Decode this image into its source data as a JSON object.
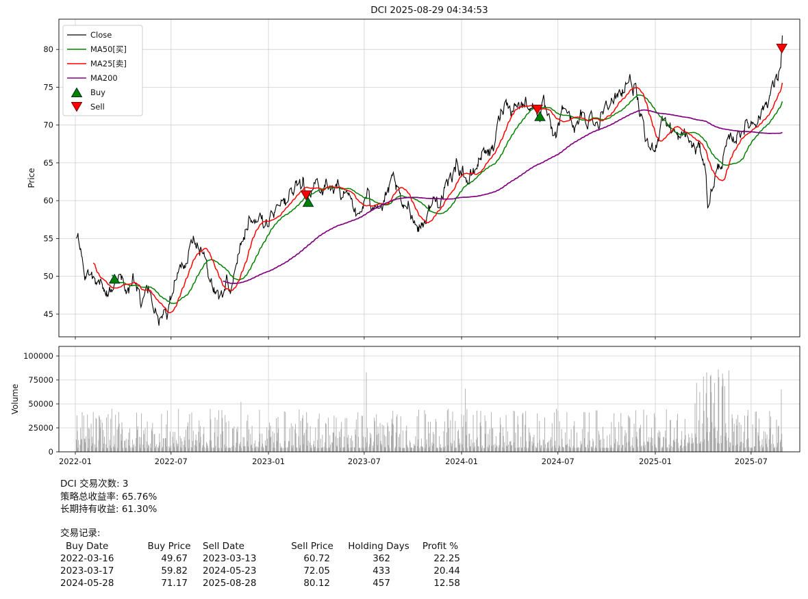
{
  "title": "DCI 2025-08-29 04:34:53",
  "summary": {
    "trade_count_line": "DCI 交易次数: 3",
    "strategy_return_line": "策略总收益率: 65.76%",
    "hold_return_line": "长期持有收益: 61.30%",
    "records_label": "交易记录:"
  },
  "trade_table": {
    "headers": [
      "Buy Date",
      "Buy Price",
      "Sell Date",
      "Sell Price",
      "Holding Days",
      "Profit %"
    ],
    "rows": [
      [
        "2022-03-16",
        "49.67",
        "2023-03-13",
        "60.72",
        "362",
        "22.25"
      ],
      [
        "2023-03-17",
        "59.82",
        "2024-05-23",
        "72.05",
        "433",
        "20.44"
      ],
      [
        "2024-05-28",
        "71.17",
        "2025-08-28",
        "80.12",
        "457",
        "12.58"
      ]
    ]
  },
  "chart_data": [
    {
      "type": "line",
      "title": "DCI 2025-08-29 04:34:53",
      "ylabel": "Price",
      "ylim": [
        42,
        84
      ],
      "yticks": [
        45,
        50,
        55,
        60,
        65,
        70,
        75,
        80
      ],
      "xlim": [
        "2021-12-01",
        "2025-10-01"
      ],
      "xticks": [
        "2022-01",
        "2022-07",
        "2023-01",
        "2023-07",
        "2024-01",
        "2024-07",
        "2025-01",
        "2025-07"
      ],
      "grid": true,
      "legend": {
        "position": "upper-left",
        "entries": [
          {
            "label": "Close",
            "type": "line",
            "color": "#000000"
          },
          {
            "label": "MA50[买]",
            "type": "line",
            "color": "#008000"
          },
          {
            "label": "MA25[卖]",
            "type": "line",
            "color": "#ff0000"
          },
          {
            "label": "MA200",
            "type": "line",
            "color": "#800080"
          },
          {
            "label": "Buy",
            "type": "marker-up",
            "color": "#008000"
          },
          {
            "label": "Sell",
            "type": "marker-down",
            "color": "#ff0000"
          }
        ]
      },
      "moving_averages": {
        "ma25_window": 25,
        "ma50_window": 50,
        "ma200_window": 200
      },
      "buy_signals": [
        [
          "2022-03-16",
          49.67
        ],
        [
          "2023-03-17",
          59.82
        ],
        [
          "2024-05-28",
          71.17
        ]
      ],
      "sell_signals": [
        [
          "2023-03-13",
          60.72
        ],
        [
          "2024-05-23",
          72.05
        ],
        [
          "2025-08-28",
          80.12
        ]
      ],
      "close_keypoints": [
        [
          "2022-01-03",
          55.6
        ],
        [
          "2022-01-12",
          53.2
        ],
        [
          "2022-01-20",
          49.6
        ],
        [
          "2022-01-27",
          51.0
        ],
        [
          "2022-02-04",
          49.9
        ],
        [
          "2022-02-11",
          48.3
        ],
        [
          "2022-02-18",
          50.1
        ],
        [
          "2022-02-25",
          48.0
        ],
        [
          "2022-03-04",
          47.4
        ],
        [
          "2022-03-10",
          48.6
        ],
        [
          "2022-03-16",
          49.67
        ],
        [
          "2022-03-24",
          50.6
        ],
        [
          "2022-04-01",
          49.2
        ],
        [
          "2022-04-08",
          47.6
        ],
        [
          "2022-04-14",
          48.4
        ],
        [
          "2022-04-22",
          49.6
        ],
        [
          "2022-04-29",
          47.9
        ],
        [
          "2022-05-06",
          46.2
        ],
        [
          "2022-05-13",
          47.3
        ],
        [
          "2022-05-20",
          48.4
        ],
        [
          "2022-05-27",
          46.6
        ],
        [
          "2022-06-03",
          44.8
        ],
        [
          "2022-06-10",
          44.2
        ],
        [
          "2022-06-17",
          45.9
        ],
        [
          "2022-06-24",
          44.9
        ],
        [
          "2022-07-01",
          47.4
        ],
        [
          "2022-07-08",
          49.8
        ],
        [
          "2022-07-15",
          51.2
        ],
        [
          "2022-07-22",
          52.8
        ],
        [
          "2022-07-29",
          51.0
        ],
        [
          "2022-08-05",
          53.2
        ],
        [
          "2022-08-12",
          55.1
        ],
        [
          "2022-08-19",
          54.3
        ],
        [
          "2022-08-26",
          53.1
        ],
        [
          "2022-09-02",
          52.0
        ],
        [
          "2022-09-09",
          50.3
        ],
        [
          "2022-09-16",
          49.2
        ],
        [
          "2022-09-23",
          47.9
        ],
        [
          "2022-09-30",
          47.3
        ],
        [
          "2022-10-07",
          47.8
        ],
        [
          "2022-10-14",
          49.4
        ],
        [
          "2022-10-21",
          48.3
        ],
        [
          "2022-10-28",
          50.6
        ],
        [
          "2022-11-04",
          53.0
        ],
        [
          "2022-11-11",
          54.6
        ],
        [
          "2022-11-18",
          56.4
        ],
        [
          "2022-11-25",
          57.6
        ],
        [
          "2022-12-02",
          58.2
        ],
        [
          "2022-12-09",
          57.1
        ],
        [
          "2022-12-16",
          57.9
        ],
        [
          "2022-12-23",
          56.9
        ],
        [
          "2022-12-30",
          57.3
        ],
        [
          "2023-01-06",
          57.6
        ],
        [
          "2023-01-13",
          58.9
        ],
        [
          "2023-01-20",
          60.1
        ],
        [
          "2023-01-27",
          60.4
        ],
        [
          "2023-02-03",
          59.6
        ],
        [
          "2023-02-10",
          60.8
        ],
        [
          "2023-02-17",
          61.2
        ],
        [
          "2023-02-24",
          61.8
        ],
        [
          "2023-03-03",
          62.4
        ],
        [
          "2023-03-08",
          63.4
        ],
        [
          "2023-03-13",
          60.72
        ],
        [
          "2023-03-17",
          59.82
        ],
        [
          "2023-03-24",
          61.3
        ],
        [
          "2023-03-31",
          61.9
        ],
        [
          "2023-04-06",
          62.3
        ],
        [
          "2023-04-14",
          61.3
        ],
        [
          "2023-04-21",
          62.4
        ],
        [
          "2023-04-28",
          61.7
        ],
        [
          "2023-05-05",
          61.1
        ],
        [
          "2023-05-12",
          62.0
        ],
        [
          "2023-05-19",
          60.4
        ],
        [
          "2023-05-26",
          61.1
        ],
        [
          "2023-06-02",
          61.8
        ],
        [
          "2023-06-09",
          60.1
        ],
        [
          "2023-06-16",
          57.4
        ],
        [
          "2023-06-23",
          58.3
        ],
        [
          "2023-06-30",
          59.6
        ],
        [
          "2023-07-07",
          60.7
        ],
        [
          "2023-07-14",
          59.4
        ],
        [
          "2023-07-21",
          60.2
        ],
        [
          "2023-07-28",
          59.6
        ],
        [
          "2023-08-04",
          59.1
        ],
        [
          "2023-08-11",
          60.4
        ],
        [
          "2023-08-18",
          61.6
        ],
        [
          "2023-08-25",
          62.7
        ],
        [
          "2023-09-01",
          61.4
        ],
        [
          "2023-09-08",
          59.9
        ],
        [
          "2023-09-15",
          58.4
        ],
        [
          "2023-09-22",
          59.7
        ],
        [
          "2023-09-29",
          58.3
        ],
        [
          "2023-10-06",
          57.0
        ],
        [
          "2023-10-13",
          56.4
        ],
        [
          "2023-10-20",
          57.1
        ],
        [
          "2023-10-27",
          57.9
        ],
        [
          "2023-11-03",
          59.2
        ],
        [
          "2023-11-10",
          60.2
        ],
        [
          "2023-11-17",
          60.0
        ],
        [
          "2023-11-24",
          60.4
        ],
        [
          "2023-12-01",
          61.1
        ],
        [
          "2023-12-08",
          62.3
        ],
        [
          "2023-12-15",
          63.6
        ],
        [
          "2023-12-22",
          64.7
        ],
        [
          "2023-12-29",
          64.3
        ],
        [
          "2024-01-05",
          63.9
        ],
        [
          "2024-01-12",
          62.6
        ],
        [
          "2024-01-19",
          63.1
        ],
        [
          "2024-01-26",
          63.9
        ],
        [
          "2024-02-02",
          65.2
        ],
        [
          "2024-02-09",
          66.4
        ],
        [
          "2024-02-16",
          67.1
        ],
        [
          "2024-02-23",
          65.9
        ],
        [
          "2024-03-01",
          66.9
        ],
        [
          "2024-03-08",
          69.4
        ],
        [
          "2024-03-15",
          71.7
        ],
        [
          "2024-03-22",
          72.9
        ],
        [
          "2024-03-29",
          73.1
        ],
        [
          "2024-04-05",
          71.9
        ],
        [
          "2024-04-12",
          73.2
        ],
        [
          "2024-04-19",
          72.4
        ],
        [
          "2024-04-26",
          72.9
        ],
        [
          "2024-05-03",
          73.1
        ],
        [
          "2024-05-10",
          72.6
        ],
        [
          "2024-05-17",
          72.3
        ],
        [
          "2024-05-23",
          72.05
        ],
        [
          "2024-05-28",
          71.17
        ],
        [
          "2024-06-04",
          72.6
        ],
        [
          "2024-06-11",
          71.0
        ],
        [
          "2024-06-18",
          69.2
        ],
        [
          "2024-06-25",
          67.9
        ],
        [
          "2024-07-02",
          69.9
        ],
        [
          "2024-07-09",
          71.8
        ],
        [
          "2024-07-16",
          72.5
        ],
        [
          "2024-07-23",
          71.2
        ],
        [
          "2024-07-30",
          70.1
        ],
        [
          "2024-08-06",
          69.6
        ],
        [
          "2024-08-13",
          71.1
        ],
        [
          "2024-08-20",
          70.9
        ],
        [
          "2024-08-27",
          70.4
        ],
        [
          "2024-09-03",
          71.5
        ],
        [
          "2024-09-10",
          70.6
        ],
        [
          "2024-09-17",
          70.1
        ],
        [
          "2024-09-24",
          72.0
        ],
        [
          "2024-10-01",
          73.3
        ],
        [
          "2024-10-08",
          73.7
        ],
        [
          "2024-10-15",
          72.7
        ],
        [
          "2024-10-22",
          73.9
        ],
        [
          "2024-10-29",
          74.4
        ],
        [
          "2024-11-05",
          75.4
        ],
        [
          "2024-11-12",
          76.1
        ],
        [
          "2024-11-19",
          75.2
        ],
        [
          "2024-11-26",
          74.3
        ],
        [
          "2024-12-03",
          71.2
        ],
        [
          "2024-12-10",
          69.1
        ],
        [
          "2024-12-17",
          67.4
        ],
        [
          "2024-12-24",
          66.8
        ],
        [
          "2024-12-31",
          67.3
        ],
        [
          "2025-01-07",
          68.4
        ],
        [
          "2025-01-14",
          71.4
        ],
        [
          "2025-01-21",
          70.3
        ],
        [
          "2025-01-28",
          69.9
        ],
        [
          "2025-02-04",
          69.4
        ],
        [
          "2025-02-11",
          68.4
        ],
        [
          "2025-02-18",
          68.0
        ],
        [
          "2025-02-25",
          69.0
        ],
        [
          "2025-03-04",
          68.1
        ],
        [
          "2025-03-11",
          67.3
        ],
        [
          "2025-03-18",
          66.6
        ],
        [
          "2025-03-25",
          67.0
        ],
        [
          "2025-04-01",
          66.0
        ],
        [
          "2025-04-07",
          62.9
        ],
        [
          "2025-04-11",
          59.1
        ],
        [
          "2025-04-17",
          61.3
        ],
        [
          "2025-04-24",
          63.2
        ],
        [
          "2025-05-01",
          64.4
        ],
        [
          "2025-05-08",
          65.3
        ],
        [
          "2025-05-15",
          66.9
        ],
        [
          "2025-05-22",
          67.8
        ],
        [
          "2025-05-29",
          68.2
        ],
        [
          "2025-06-05",
          68.6
        ],
        [
          "2025-06-12",
          69.3
        ],
        [
          "2025-06-19",
          69.8
        ],
        [
          "2025-06-26",
          70.1
        ],
        [
          "2025-07-03",
          70.4
        ],
        [
          "2025-07-10",
          70.8
        ],
        [
          "2025-07-17",
          71.2
        ],
        [
          "2025-07-24",
          72.3
        ],
        [
          "2025-07-31",
          73.2
        ],
        [
          "2025-08-07",
          74.3
        ],
        [
          "2025-08-14",
          75.4
        ],
        [
          "2025-08-21",
          76.4
        ],
        [
          "2025-08-26",
          78.3
        ],
        [
          "2025-08-28",
          80.12
        ],
        [
          "2025-08-29",
          82.0
        ]
      ]
    },
    {
      "type": "bar",
      "ylabel": "Volume",
      "ylim": [
        0,
        110000
      ],
      "yticks": [
        0,
        25000,
        50000,
        75000,
        100000
      ],
      "xticks": [
        "2022-01",
        "2022-07",
        "2023-01",
        "2023-07",
        "2024-01",
        "2024-07",
        "2025-01",
        "2025-07"
      ],
      "grid": true,
      "bar_color": "#ababab",
      "volume_estimate": {
        "typical_min": 4000,
        "typical_max": 45000,
        "spikes": [
          [
            "2022-11-10",
            52000
          ],
          [
            "2023-07-05",
            83000
          ],
          [
            "2024-01-08",
            66000
          ],
          [
            "2025-03-20",
            72000
          ],
          [
            "2025-04-08",
            83000
          ],
          [
            "2025-04-15",
            79000
          ],
          [
            "2025-08-27",
            65000
          ]
        ],
        "elevated_window": [
          "2025-03-01",
          "2025-05-20"
        ]
      }
    }
  ]
}
